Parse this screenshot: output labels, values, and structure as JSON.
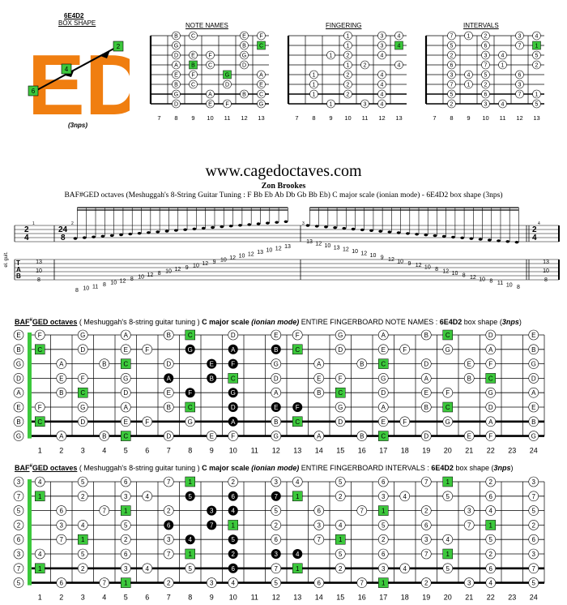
{
  "box": {
    "code": "6E4D2",
    "subtitle": "BOX SHAPE",
    "logo_text": "ED",
    "logo_color": "#f07e10",
    "logo_markers": [
      "2",
      "4",
      "6"
    ],
    "nps": "(3nps)"
  },
  "mini_diagrams": {
    "titles": [
      "NOTE NAMES",
      "FINGERING",
      "INTERVALS"
    ],
    "fret_numbers": [
      "7",
      "8",
      "9",
      "10",
      "11",
      "12",
      "13"
    ],
    "note_names": [
      [
        "B",
        "C",
        "",
        "",
        "E",
        "F"
      ],
      [
        "G",
        "",
        "",
        "",
        "B",
        "C"
      ],
      [
        "D",
        "E",
        "F",
        "",
        "G",
        ""
      ],
      [
        "A",
        "B",
        "C",
        "",
        "D",
        ""
      ],
      [
        "E",
        "F",
        "",
        "G",
        "",
        "A"
      ],
      [
        "B",
        "C",
        "",
        "D",
        "",
        "E"
      ],
      [
        "G",
        "",
        "A",
        "",
        "B",
        "C"
      ],
      [
        "D",
        "",
        "E",
        "F",
        "",
        "G"
      ]
    ],
    "fingering": [
      [
        "",
        "",
        "1",
        "",
        "3",
        "4"
      ],
      [
        "",
        "",
        "1",
        "",
        "3",
        "4"
      ],
      [
        "",
        "1",
        "2",
        "",
        "4",
        ""
      ],
      [
        "",
        "",
        "1",
        "2",
        "",
        "4"
      ],
      [
        "1",
        "",
        "2",
        "",
        "4",
        ""
      ],
      [
        "1",
        "",
        "2",
        "",
        "4",
        ""
      ],
      [
        "1",
        "",
        "2",
        "",
        "4",
        ""
      ],
      [
        "",
        "1",
        "",
        "3",
        "4",
        ""
      ]
    ],
    "intervals": [
      [
        "7",
        "1",
        "2",
        "",
        "3",
        "4"
      ],
      [
        "5",
        "",
        "6",
        "",
        "7",
        "1"
      ],
      [
        "2",
        "",
        "3",
        "4",
        "",
        "5"
      ],
      [
        "6",
        "",
        "7",
        "1",
        "",
        "2"
      ],
      [
        "3",
        "4",
        "5",
        "",
        "6",
        ""
      ],
      [
        "7",
        "1",
        "2",
        "",
        "3",
        ""
      ],
      [
        "5",
        "",
        "6",
        "",
        "7",
        "1"
      ],
      [
        "2",
        "",
        "3",
        "4",
        "",
        "5"
      ]
    ]
  },
  "header": {
    "site": "www.cagedoctaves.com",
    "author": "Zon Brookes",
    "description": "BAF#GED octaves (Meshuggah's 8-String Guitar Tuning : F Bb Eb Ab Db Gb Bb Eb) C major scale (ionian mode) - 6E4D2 box shape (3nps)"
  },
  "score": {
    "instrument_label": "el. guit.",
    "time_start": [
      "2",
      "4"
    ],
    "time_main": [
      "24",
      "8"
    ],
    "measure_numbers": [
      "1",
      "2",
      "3",
      "4"
    ],
    "tab_letters": [
      "T",
      "A",
      "B"
    ],
    "tab_intro": [
      "13",
      "10",
      "8"
    ],
    "tab_outro": [
      "13",
      "10",
      "8"
    ],
    "tab_line1": "13 12 10 13 12 10 12 10 9 12 10 9 12 10 8 12 10 8 12 10 8 11 10 8",
    "tab_line2": "8 10 11 8 10 12 8 10 12 8 10 12 9 10 12 9 10 12 10 12 13 10 12 13"
  },
  "section1": {
    "tuning_title": "BAF",
    "tuning_sharp": "#",
    "tuning_rest": "GED octaves",
    "paren": " ( Meshuggah's 8-string guitar tuning ) ",
    "scale": "C major scale",
    "mode": "(ionian mode)",
    "desc": " ENTIRE FINGERBOARD NOTE NAMES : ",
    "shape": "6E4D2",
    "shape_suffix": " box shape (",
    "nps": "3nps",
    "close": ")"
  },
  "section2": {
    "tuning_title": "BAF",
    "tuning_sharp": "#",
    "tuning_rest": "GED octaves",
    "paren": " ( Meshuggah's 8-string guitar tuning ) ",
    "scale": "C major scale",
    "mode": "(ionian mode)",
    "desc": " ENTIRE FINGERBOARD INTERVALS : ",
    "shape": "6E4D2",
    "shape_suffix": " box shape (",
    "nps": "3nps",
    "close": ")"
  },
  "fingerboard": {
    "open_strings": [
      "E",
      "B",
      "G",
      "D",
      "A",
      "E",
      "B",
      "G"
    ],
    "fret_numbers": [
      "1",
      "2",
      "3",
      "4",
      "5",
      "6",
      "7",
      "8",
      "9",
      "10",
      "11",
      "12",
      "13",
      "14",
      "15",
      "16",
      "17",
      "18",
      "19",
      "20",
      "21",
      "22",
      "23",
      "24"
    ],
    "colors": {
      "root": "#3cc83c",
      "box": "#e8821e",
      "dark": "#000000"
    }
  }
}
